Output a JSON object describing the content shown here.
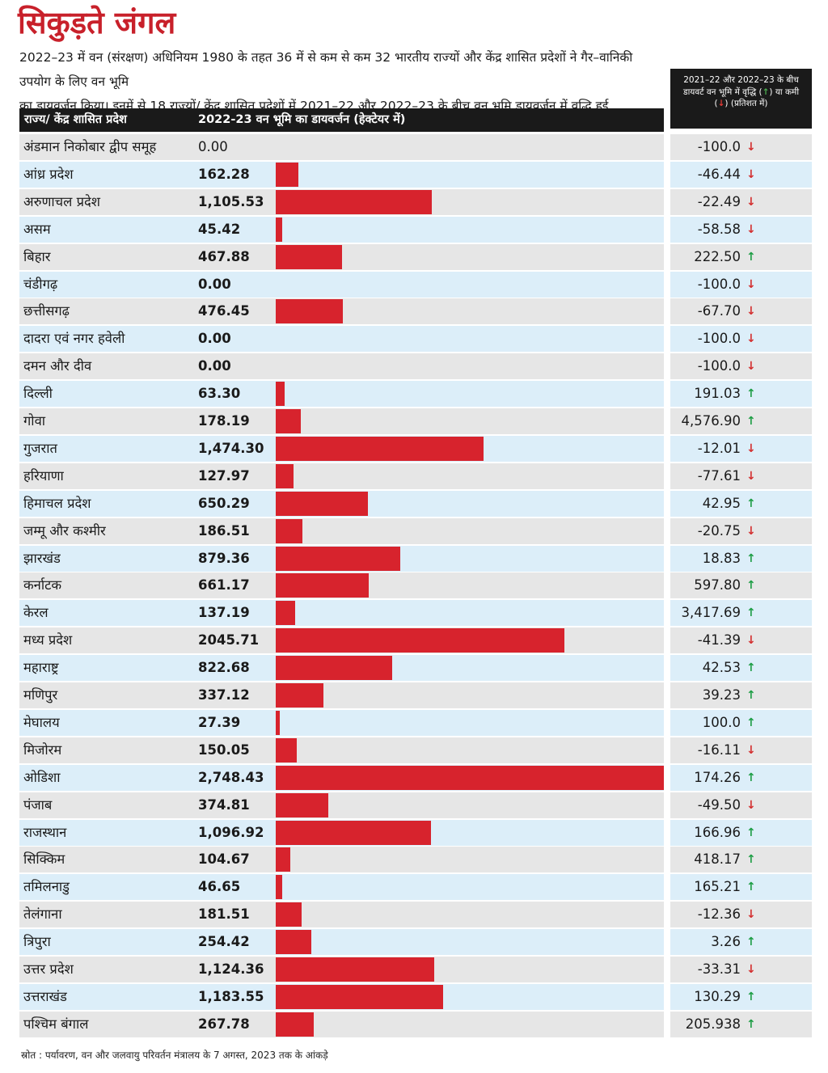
{
  "title": "सिकुड़ते जंगल",
  "intro_line1": "2022–23 में वन (संरक्षण) अधिनियम 1980 के तहत 36 में से कम से कम 32 भारतीय राज्यों और केंद्र शासित प्रदेशों ने गैर–वानिकी उपयोग के लिए वन भूमि",
  "intro_line2": "का डायवर्जन किया। इनमें से 18 राज्यों/ केंद्र शासित प्रदेशों में 2021–22 और 2022–23 के बीच वन भूमि डायवर्जन में वृद्धि हुई",
  "column_headers": {
    "state": "राज्य/ केंद्र शासित प्रदेश",
    "diversion": "2022-23 वन भूमि का डायवर्जन (हेक्टेयर में)",
    "change_line1": "2021–22 और 2022–23 के बीच",
    "change_line2a": "डायवर्ट वन भूमि में वृद्धि (",
    "change_up": "↑",
    "change_line2b": ") या कमी",
    "change_down": "↓",
    "change_line3": ") (प्रतिशत में)"
  },
  "source": "स्रोत : पर्यावरण, वन और जलवायु परिवर्तन मंत्रालय के 7 अगस्त, 2023 तक के आंकड़े",
  "colors": {
    "bar": "#d7232d",
    "up": "#1e9e45",
    "down": "#d32f2f",
    "title": "#c8202a"
  },
  "chart_data": {
    "type": "bar",
    "orientation": "horizontal",
    "x_max": 2748.43,
    "rows": [
      {
        "name": "अंडमान निकोबार द्वीप समूह",
        "value": 0,
        "value_label": "0.00",
        "change": "-100.0",
        "direction": "down"
      },
      {
        "name": "आंध्र प्रदेश",
        "value": 162.28,
        "value_label": "162.28",
        "change": "-46.44",
        "direction": "down"
      },
      {
        "name": "अरुणाचल प्रदेश",
        "value": 1105.53,
        "value_label": "1,105.53",
        "change": "-22.49",
        "direction": "down"
      },
      {
        "name": "असम",
        "value": 45.42,
        "value_label": "45.42",
        "change": "-58.58",
        "direction": "down"
      },
      {
        "name": "बिहार",
        "value": 467.88,
        "value_label": "467.88",
        "change": "222.50",
        "direction": "up"
      },
      {
        "name": "चंडीगढ़",
        "value": 0,
        "value_label": "0.00",
        "change": "-100.0",
        "direction": "down"
      },
      {
        "name": "छत्तीसगढ़",
        "value": 476.45,
        "value_label": "476.45",
        "change": "-67.70",
        "direction": "down"
      },
      {
        "name": "दादरा एवं नगर हवेली",
        "value": 0,
        "value_label": "0.00",
        "change": "-100.0",
        "direction": "down"
      },
      {
        "name": "दमन और दीव",
        "value": 0,
        "value_label": "0.00",
        "change": "-100.0",
        "direction": "down"
      },
      {
        "name": "दिल्ली",
        "value": 63.3,
        "value_label": "63.30",
        "change": "191.03",
        "direction": "up"
      },
      {
        "name": "गोवा",
        "value": 178.19,
        "value_label": "178.19",
        "change": "4,576.90",
        "direction": "up"
      },
      {
        "name": "गुजरात",
        "value": 1474.3,
        "value_label": "1,474.30",
        "change": "-12.01",
        "direction": "down"
      },
      {
        "name": "हरियाणा",
        "value": 127.97,
        "value_label": "127.97",
        "change": "-77.61",
        "direction": "down"
      },
      {
        "name": "हिमाचल प्रदेश",
        "value": 650.29,
        "value_label": "650.29",
        "change": "42.95",
        "direction": "up"
      },
      {
        "name": "जम्मू और कश्मीर",
        "value": 186.51,
        "value_label": "186.51",
        "change": "-20.75",
        "direction": "down"
      },
      {
        "name": "झारखंड",
        "value": 879.36,
        "value_label": "879.36",
        "change": "18.83",
        "direction": "up"
      },
      {
        "name": "कर्नाटक",
        "value": 661.17,
        "value_label": "661.17",
        "change": "597.80",
        "direction": "up"
      },
      {
        "name": "केरल",
        "value": 137.19,
        "value_label": "137.19",
        "change": "3,417.69",
        "direction": "up"
      },
      {
        "name": "मध्य प्रदेश",
        "value": 2045.71,
        "value_label": "2045.71",
        "change": "-41.39",
        "direction": "down"
      },
      {
        "name": "महाराष्ट्र",
        "value": 822.68,
        "value_label": "822.68",
        "change": "42.53",
        "direction": "up"
      },
      {
        "name": "मणिपुर",
        "value": 337.12,
        "value_label": "337.12",
        "change": "39.23",
        "direction": "up"
      },
      {
        "name": "मेघालय",
        "value": 27.39,
        "value_label": "27.39",
        "change": "100.0",
        "direction": "up"
      },
      {
        "name": "मिजोरम",
        "value": 150.05,
        "value_label": "150.05",
        "change": "-16.11",
        "direction": "down"
      },
      {
        "name": "ओडिशा",
        "value": 2748.43,
        "value_label": "2,748.43",
        "change": "174.26",
        "direction": "up"
      },
      {
        "name": "पंजाब",
        "value": 374.81,
        "value_label": "374.81",
        "change": "-49.50",
        "direction": "down"
      },
      {
        "name": "राजस्थान",
        "value": 1096.92,
        "value_label": "1,096.92",
        "change": "166.96",
        "direction": "up"
      },
      {
        "name": "सिक्किम",
        "value": 104.67,
        "value_label": "104.67",
        "change": "418.17",
        "direction": "up"
      },
      {
        "name": "तमिलनाडु",
        "value": 46.65,
        "value_label": "46.65",
        "change": "165.21",
        "direction": "up"
      },
      {
        "name": "तेलंगाना",
        "value": 181.51,
        "value_label": "181.51",
        "change": "-12.36",
        "direction": "down"
      },
      {
        "name": "त्रिपुरा",
        "value": 254.42,
        "value_label": "254.42",
        "change": "3.26",
        "direction": "up"
      },
      {
        "name": "उत्तर प्रदेश",
        "value": 1124.36,
        "value_label": "1,124.36",
        "change": "-33.31",
        "direction": "down"
      },
      {
        "name": "उत्तराखंड",
        "value": 1183.55,
        "value_label": "1,183.55",
        "change": "130.29",
        "direction": "up"
      },
      {
        "name": "पश्चिम बंगाल",
        "value": 267.78,
        "value_label": "267.78",
        "change": "205.938",
        "direction": "up"
      }
    ]
  }
}
